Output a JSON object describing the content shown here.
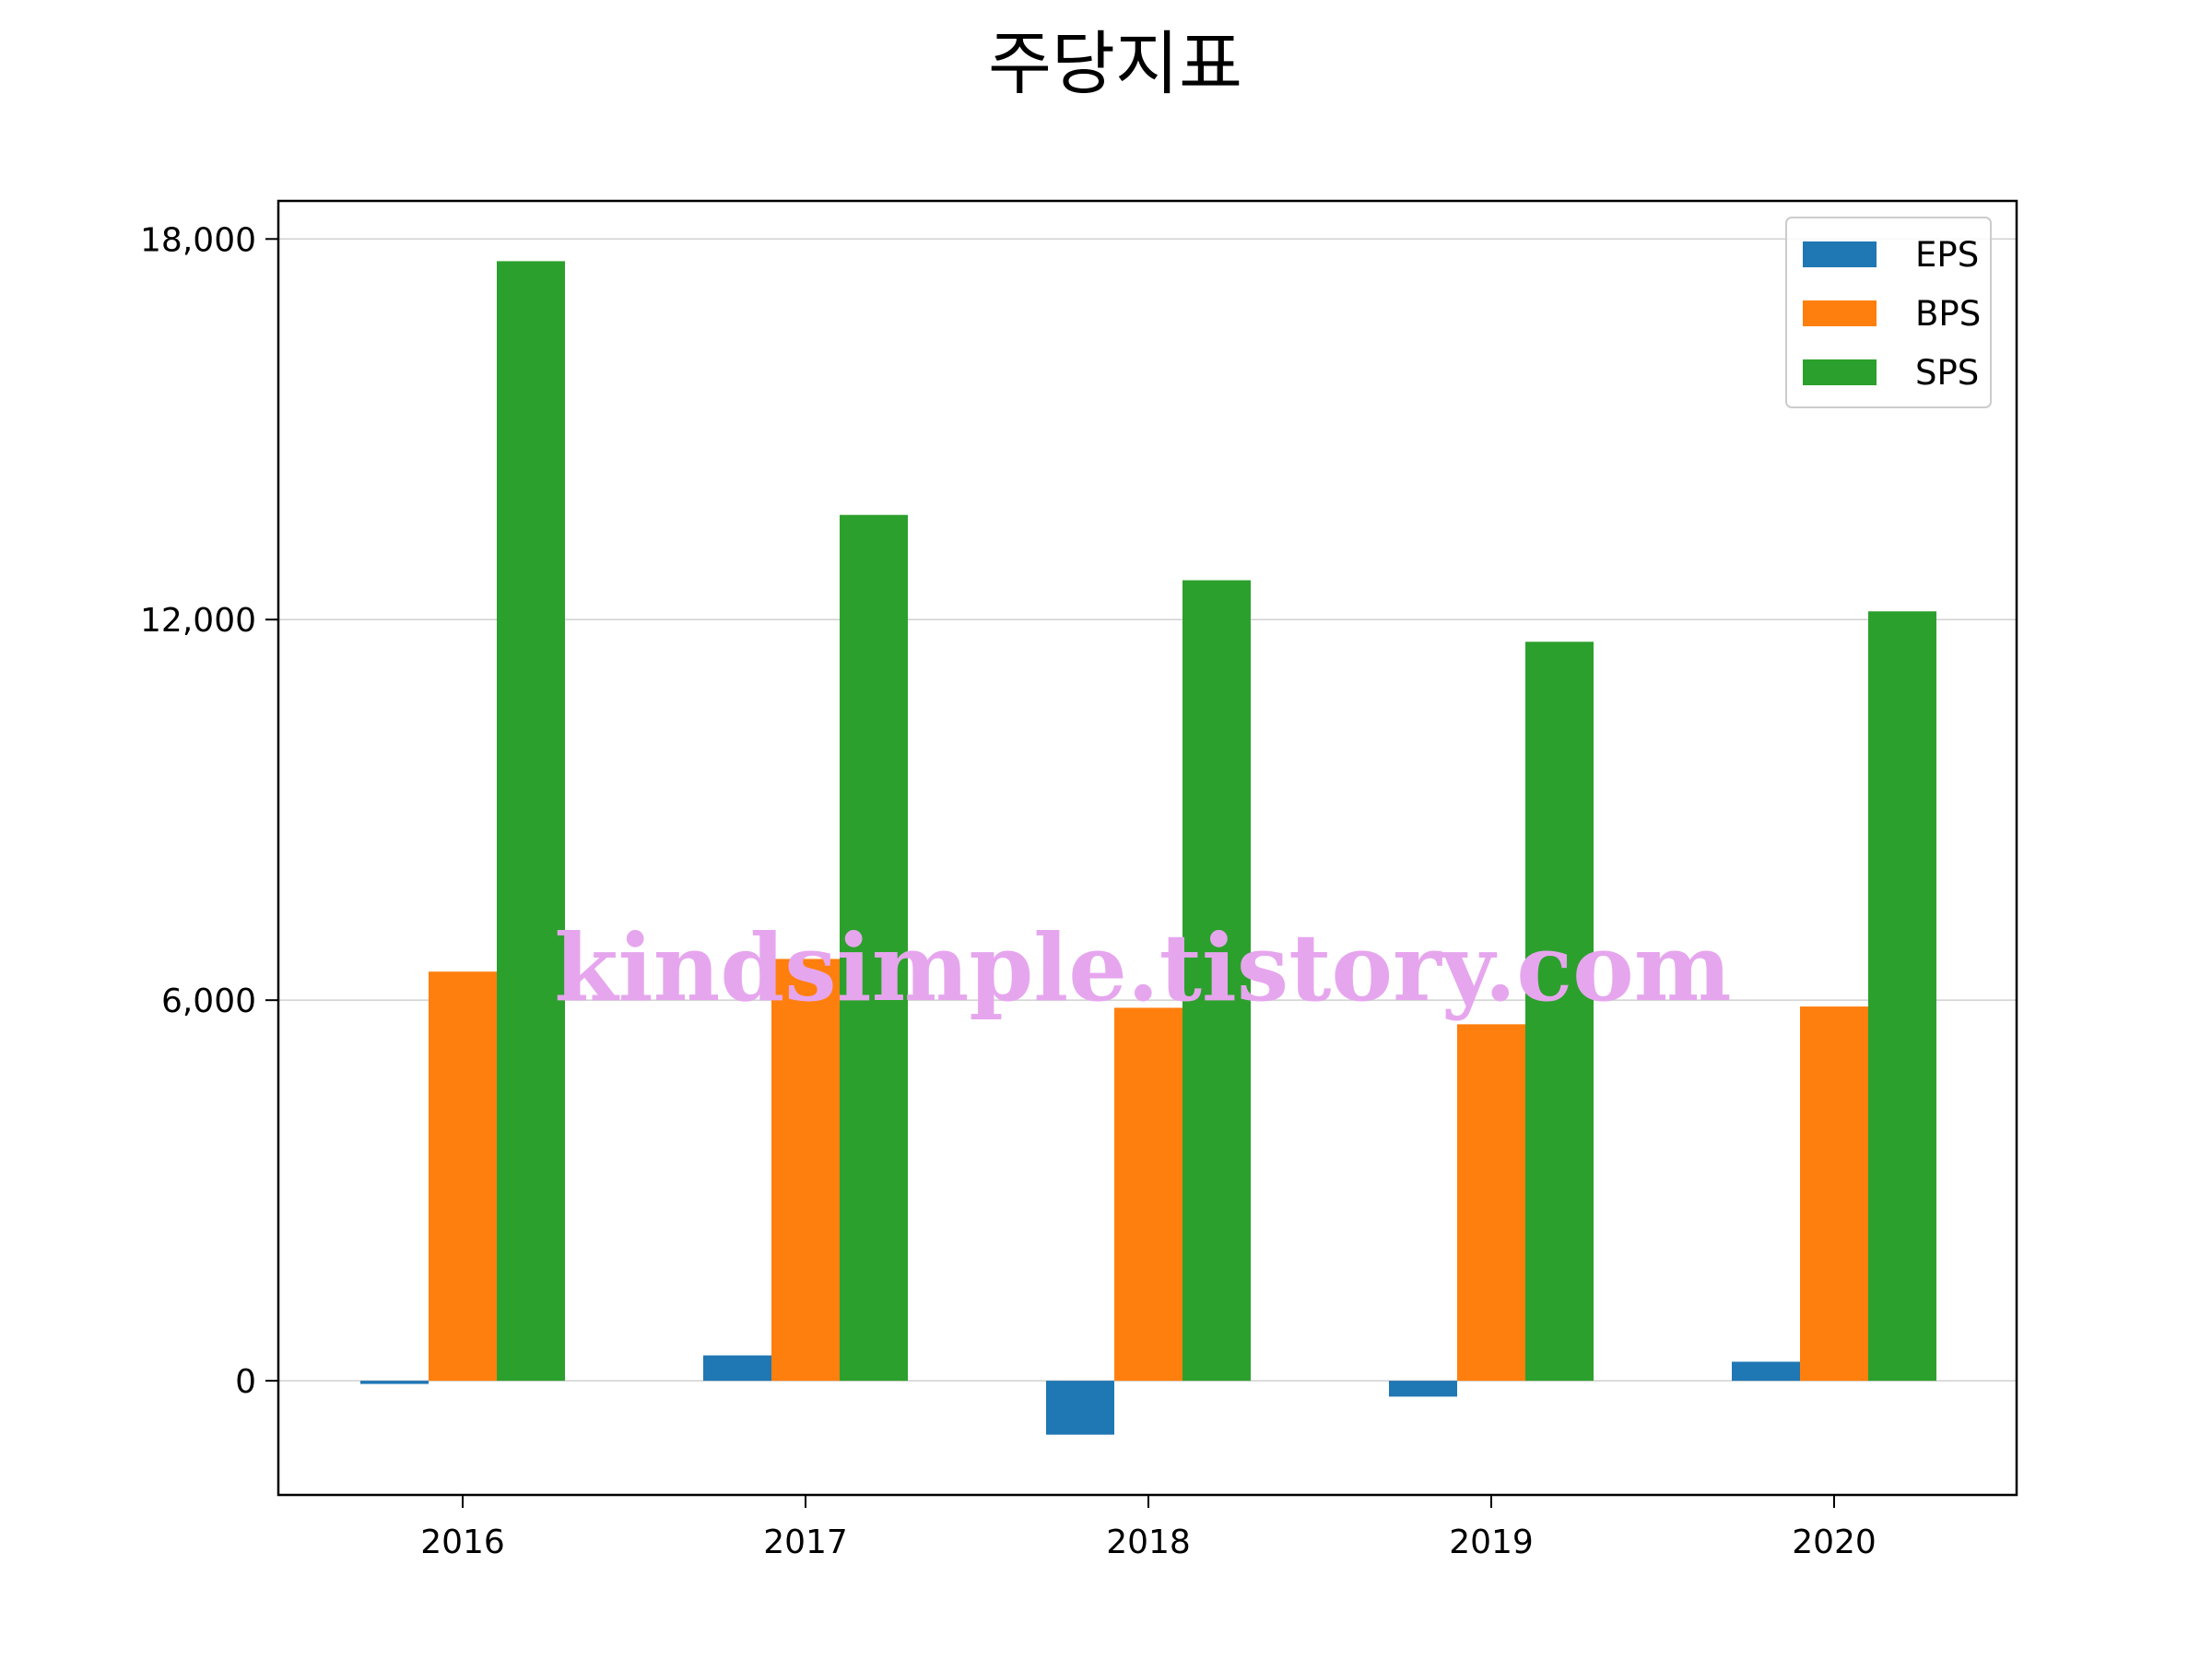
{
  "chart_data": {
    "type": "bar",
    "title": "주당지표",
    "xlabel": "",
    "ylabel": "",
    "categories": [
      "2016",
      "2017",
      "2018",
      "2019",
      "2020"
    ],
    "series": [
      {
        "name": "EPS",
        "color": "#1f77b4",
        "values": [
          -50,
          400,
          -850,
          -250,
          300
        ]
      },
      {
        "name": "BPS",
        "color": "#ff7f0e",
        "values": [
          6450,
          6650,
          5880,
          5620,
          5900
        ]
      },
      {
        "name": "SPS",
        "color": "#2ca02c",
        "values": [
          17650,
          13650,
          12620,
          11650,
          12130
        ]
      }
    ],
    "ylim": [
      -1800,
      18600
    ],
    "yticks": [
      0,
      6000,
      12000,
      18000
    ],
    "ytick_labels": [
      "0",
      "6,000",
      "12,000",
      "18,000"
    ],
    "grid": "horizontal",
    "legend_position": "top-right"
  },
  "watermark": {
    "text": "kindsimple.tistory.com",
    "color": "#e6a6ee"
  }
}
